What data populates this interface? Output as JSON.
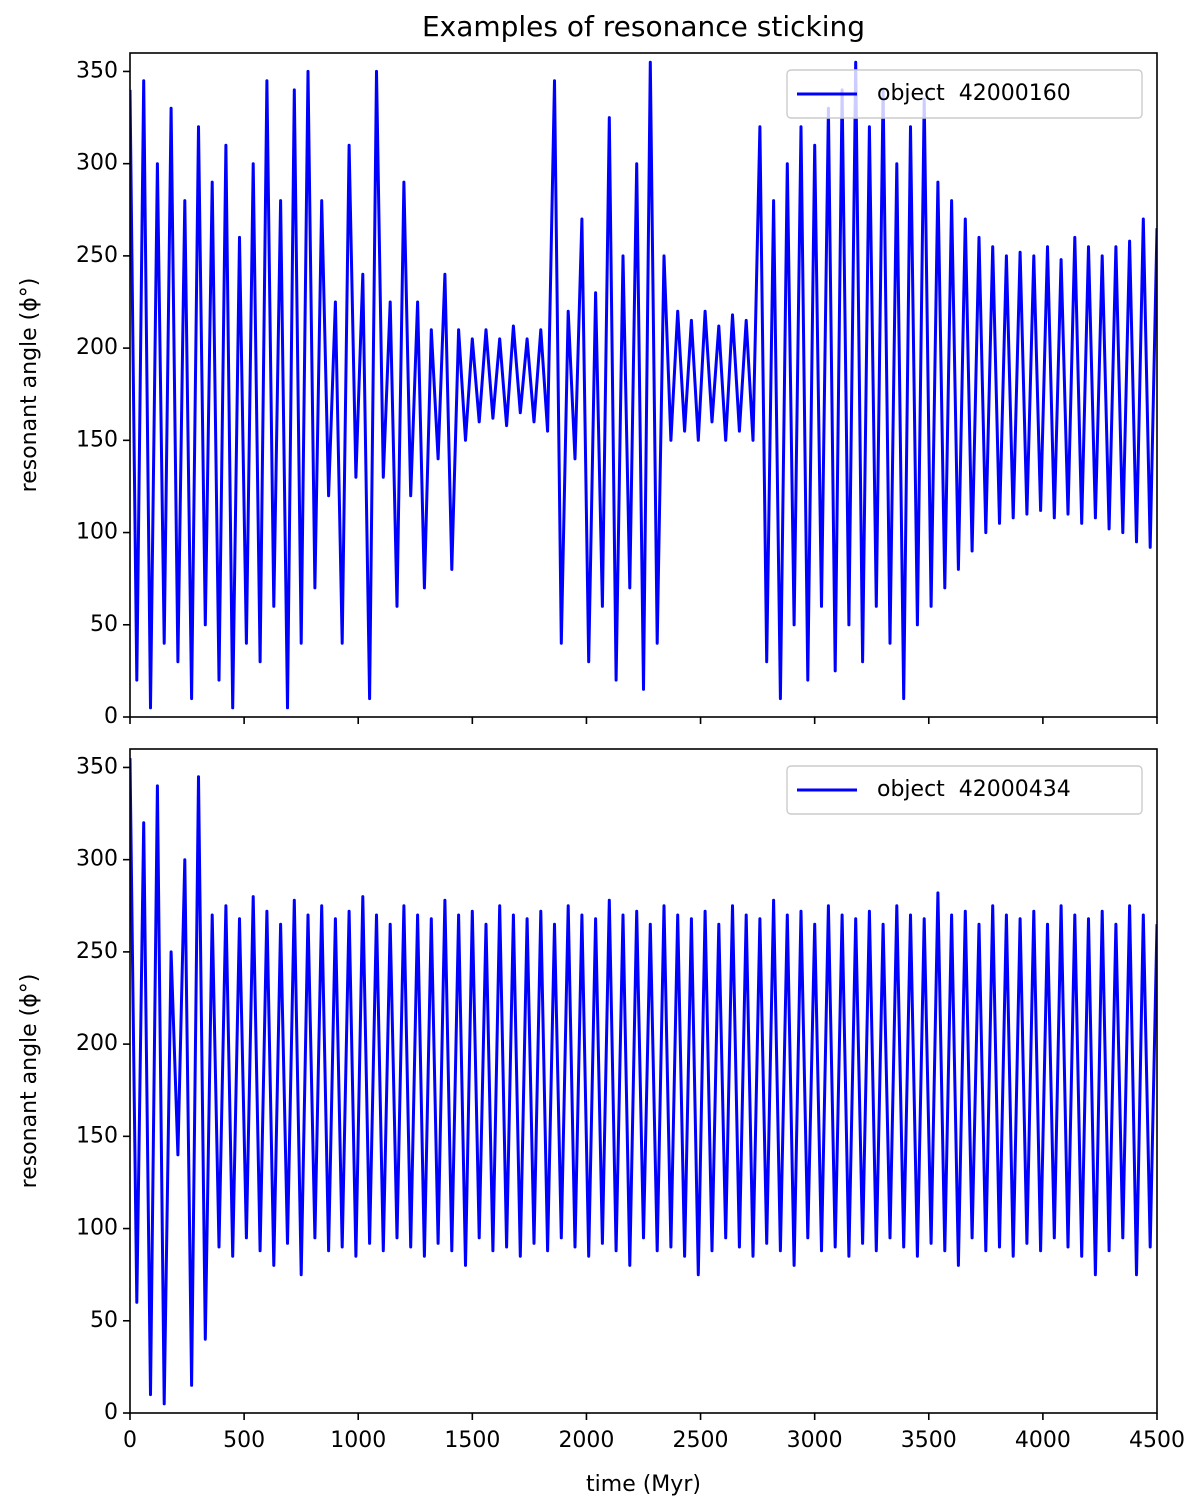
{
  "chart_data": [
    {
      "type": "line",
      "title": "Examples of resonance sticking",
      "y_label": "resonant angle (ϕ°)",
      "xlim": [
        0,
        4500
      ],
      "ylim": [
        0,
        360
      ],
      "xticks": [
        0,
        500,
        1000,
        1500,
        2000,
        2500,
        3000,
        3500,
        4000,
        4500
      ],
      "show_xticklabels": false,
      "yticks": [
        0,
        50,
        100,
        150,
        200,
        250,
        300,
        350
      ],
      "legend": "upper right",
      "x": [
        0,
        30,
        60,
        90,
        120,
        150,
        180,
        210,
        240,
        270,
        300,
        330,
        360,
        390,
        420,
        450,
        480,
        510,
        540,
        570,
        600,
        630,
        660,
        690,
        720,
        750,
        780,
        810,
        840,
        870,
        900,
        930,
        960,
        990,
        1020,
        1050,
        1080,
        1110,
        1140,
        1170,
        1200,
        1230,
        1260,
        1290,
        1320,
        1350,
        1380,
        1410,
        1440,
        1470,
        1500,
        1530,
        1560,
        1590,
        1620,
        1650,
        1680,
        1710,
        1740,
        1770,
        1800,
        1830,
        1860,
        1890,
        1920,
        1950,
        1980,
        2010,
        2040,
        2070,
        2100,
        2130,
        2160,
        2190,
        2220,
        2250,
        2280,
        2310,
        2340,
        2370,
        2400,
        2430,
        2460,
        2490,
        2520,
        2550,
        2580,
        2610,
        2640,
        2670,
        2700,
        2730,
        2760,
        2790,
        2820,
        2850,
        2880,
        2910,
        2940,
        2970,
        3000,
        3030,
        3060,
        3090,
        3120,
        3150,
        3180,
        3210,
        3240,
        3270,
        3300,
        3330,
        3360,
        3390,
        3420,
        3450,
        3480,
        3510,
        3540,
        3570,
        3600,
        3630,
        3660,
        3690,
        3720,
        3750,
        3780,
        3810,
        3840,
        3870,
        3900,
        3930,
        3960,
        3990,
        4020,
        4050,
        4080,
        4110,
        4140,
        4170,
        4200,
        4230,
        4260,
        4290,
        4320,
        4350,
        4380,
        4410,
        4440,
        4470,
        4500
      ],
      "series": [
        {
          "name": "object  42000160",
          "color": "#0000ff",
          "values": [
            340,
            20,
            345,
            5,
            300,
            40,
            330,
            30,
            280,
            10,
            320,
            50,
            290,
            20,
            310,
            5,
            260,
            40,
            300,
            30,
            345,
            60,
            280,
            5,
            340,
            40,
            350,
            70,
            280,
            120,
            225,
            40,
            310,
            130,
            240,
            10,
            350,
            130,
            225,
            60,
            290,
            120,
            225,
            70,
            210,
            140,
            240,
            80,
            210,
            150,
            205,
            160,
            210,
            162,
            205,
            158,
            212,
            165,
            205,
            160,
            210,
            155,
            345,
            40,
            220,
            140,
            270,
            30,
            230,
            60,
            325,
            20,
            250,
            70,
            300,
            15,
            355,
            40,
            250,
            150,
            220,
            155,
            215,
            150,
            220,
            160,
            212,
            150,
            218,
            155,
            215,
            150,
            320,
            30,
            280,
            10,
            300,
            50,
            320,
            20,
            310,
            60,
            330,
            25,
            340,
            50,
            355,
            30,
            320,
            60,
            340,
            40,
            300,
            10,
            320,
            50,
            335,
            60,
            290,
            70,
            280,
            80,
            270,
            90,
            260,
            100,
            255,
            105,
            250,
            108,
            252,
            110,
            250,
            112,
            255,
            108,
            248,
            110,
            260,
            105,
            255,
            108,
            250,
            102,
            255,
            100,
            258,
            95,
            270,
            92,
            265
          ]
        }
      ]
    },
    {
      "type": "line",
      "y_label": "resonant angle (ϕ°)",
      "x_label": "time (Myr)",
      "xlim": [
        0,
        4500
      ],
      "ylim": [
        0,
        360
      ],
      "xticks": [
        0,
        500,
        1000,
        1500,
        2000,
        2500,
        3000,
        3500,
        4000,
        4500
      ],
      "show_xticklabels": true,
      "yticks": [
        0,
        50,
        100,
        150,
        200,
        250,
        300,
        350
      ],
      "legend": "upper right",
      "x": [
        0,
        30,
        60,
        90,
        120,
        150,
        180,
        210,
        240,
        270,
        300,
        330,
        360,
        390,
        420,
        450,
        480,
        510,
        540,
        570,
        600,
        630,
        660,
        690,
        720,
        750,
        780,
        810,
        840,
        870,
        900,
        930,
        960,
        990,
        1020,
        1050,
        1080,
        1110,
        1140,
        1170,
        1200,
        1230,
        1260,
        1290,
        1320,
        1350,
        1380,
        1410,
        1440,
        1470,
        1500,
        1530,
        1560,
        1590,
        1620,
        1650,
        1680,
        1710,
        1740,
        1770,
        1800,
        1830,
        1860,
        1890,
        1920,
        1950,
        1980,
        2010,
        2040,
        2070,
        2100,
        2130,
        2160,
        2190,
        2220,
        2250,
        2280,
        2310,
        2340,
        2370,
        2400,
        2430,
        2460,
        2490,
        2520,
        2550,
        2580,
        2610,
        2640,
        2670,
        2700,
        2730,
        2760,
        2790,
        2820,
        2850,
        2880,
        2910,
        2940,
        2970,
        3000,
        3030,
        3060,
        3090,
        3120,
        3150,
        3180,
        3210,
        3240,
        3270,
        3300,
        3330,
        3360,
        3390,
        3420,
        3450,
        3480,
        3510,
        3540,
        3570,
        3600,
        3630,
        3660,
        3690,
        3720,
        3750,
        3780,
        3810,
        3840,
        3870,
        3900,
        3930,
        3960,
        3990,
        4020,
        4050,
        4080,
        4110,
        4140,
        4170,
        4200,
        4230,
        4260,
        4290,
        4320,
        4350,
        4380,
        4410,
        4440,
        4470,
        4500
      ],
      "series": [
        {
          "name": "object  42000434",
          "color": "#0000ff",
          "values": [
            355,
            60,
            320,
            10,
            340,
            5,
            250,
            140,
            300,
            15,
            345,
            40,
            270,
            90,
            275,
            85,
            268,
            95,
            280,
            88,
            272,
            80,
            265,
            92,
            278,
            75,
            270,
            95,
            275,
            88,
            268,
            90,
            272,
            85,
            280,
            92,
            270,
            88,
            265,
            95,
            275,
            90,
            270,
            85,
            268,
            92,
            278,
            88,
            270,
            80,
            272,
            95,
            265,
            88,
            275,
            90,
            270,
            85,
            268,
            92,
            272,
            88,
            265,
            95,
            275,
            90,
            270,
            85,
            268,
            92,
            278,
            88,
            270,
            80,
            272,
            95,
            265,
            88,
            275,
            90,
            270,
            85,
            268,
            75,
            272,
            88,
            265,
            95,
            275,
            90,
            270,
            85,
            268,
            92,
            278,
            88,
            270,
            80,
            272,
            95,
            265,
            88,
            275,
            90,
            270,
            85,
            268,
            92,
            272,
            88,
            265,
            95,
            275,
            90,
            270,
            85,
            268,
            92,
            282,
            88,
            270,
            80,
            272,
            95,
            265,
            88,
            275,
            90,
            270,
            85,
            268,
            92,
            272,
            88,
            265,
            95,
            275,
            90,
            270,
            85,
            268,
            75,
            272,
            88,
            265,
            95,
            275,
            75,
            270,
            90,
            265
          ]
        }
      ]
    }
  ]
}
